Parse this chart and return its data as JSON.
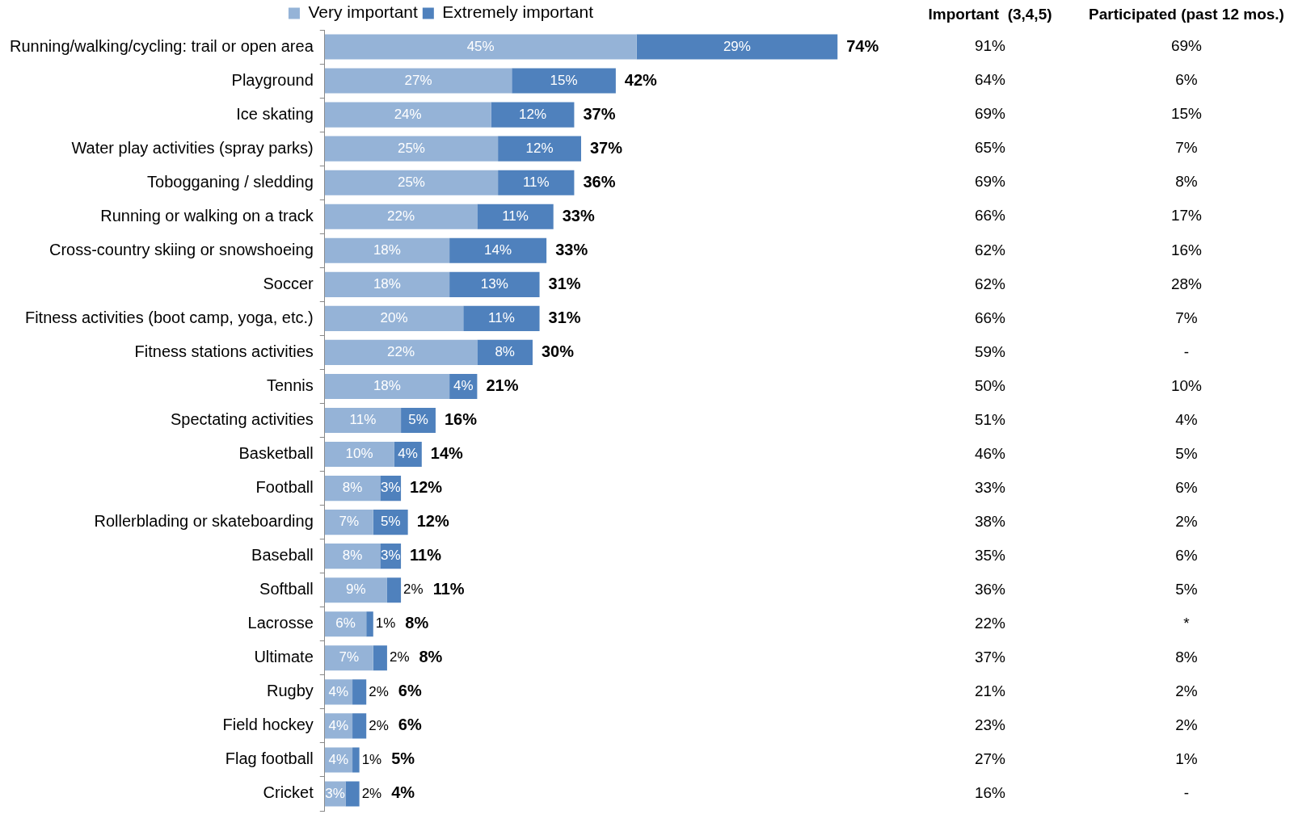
{
  "chart_data": {
    "type": "bar",
    "orientation": "horizontal",
    "stacked": true,
    "legend": "top",
    "categories": [
      "Running/walking/cycling: trail or open area",
      "Playground",
      "Ice skating",
      "Water play activities (spray parks)",
      "Tobogganing / sledding",
      "Running or walking on a track",
      "Cross-country skiing or snowshoeing",
      "Soccer",
      "Fitness activities (boot camp, yoga, etc.)",
      "Fitness stations activities",
      "Tennis",
      "Spectating activities",
      "Basketball",
      "Football",
      "Rollerblading or skateboarding",
      "Baseball",
      "Softball",
      "Lacrosse",
      "Ultimate",
      "Rugby",
      "Field hockey",
      "Flag football",
      "Cricket"
    ],
    "series": [
      {
        "name": "Very important",
        "color": "#95b3d7",
        "values": [
          45,
          27,
          24,
          25,
          25,
          22,
          18,
          18,
          20,
          22,
          18,
          11,
          10,
          8,
          7,
          8,
          9,
          6,
          7,
          4,
          4,
          4,
          3
        ],
        "value_labels": [
          "45%",
          "27%",
          "24%",
          "25%",
          "25%",
          "22%",
          "18%",
          "18%",
          "20%",
          "22%",
          "18%",
          "11%",
          "10%",
          "8%",
          "7%",
          "8%",
          "9%",
          "6%",
          "7%",
          "4%",
          "4%",
          "4%",
          "3%"
        ]
      },
      {
        "name": "Extremely important",
        "color": "#4f81bd",
        "values": [
          29,
          15,
          12,
          12,
          11,
          11,
          14,
          13,
          11,
          8,
          4,
          5,
          4,
          3,
          5,
          3,
          2,
          1,
          2,
          2,
          2,
          1,
          2
        ],
        "value_labels": [
          "29%",
          "15%",
          "12%",
          "12%",
          "11%",
          "11%",
          "14%",
          "13%",
          "11%",
          "8%",
          "4%",
          "5%",
          "4%",
          "3%",
          "5%",
          "3%",
          "2%",
          "1%",
          "2%",
          "2%",
          "2%",
          "1%",
          "2%"
        ]
      }
    ],
    "totals": [
      "74%",
      "42%",
      "37%",
      "37%",
      "36%",
      "33%",
      "33%",
      "31%",
      "31%",
      "30%",
      "21%",
      "16%",
      "14%",
      "12%",
      "12%",
      "11%",
      "11%",
      "8%",
      "8%",
      "6%",
      "6%",
      "5%",
      "4%"
    ],
    "annotations": [
      "Important  (3,4,5)",
      "Participated (past 12 mos.)",
      "91%",
      "69%",
      "64%",
      "6%",
      "69%",
      "15%",
      "65%",
      "7%",
      "69%",
      "8%",
      "66%",
      "17%",
      "62%",
      "16%",
      "62%",
      "28%",
      "66%",
      "7%",
      "59%",
      "-",
      "50%",
      "10%",
      "51%",
      "4%",
      "46%",
      "5%",
      "33%",
      "6%",
      "38%",
      "2%",
      "35%",
      "6%",
      "36%",
      "5%",
      "22%",
      "*",
      "37%",
      "8%",
      "21%",
      "2%",
      "23%",
      "2%",
      "27%",
      "1%",
      "16%",
      "-"
    ]
  }
}
